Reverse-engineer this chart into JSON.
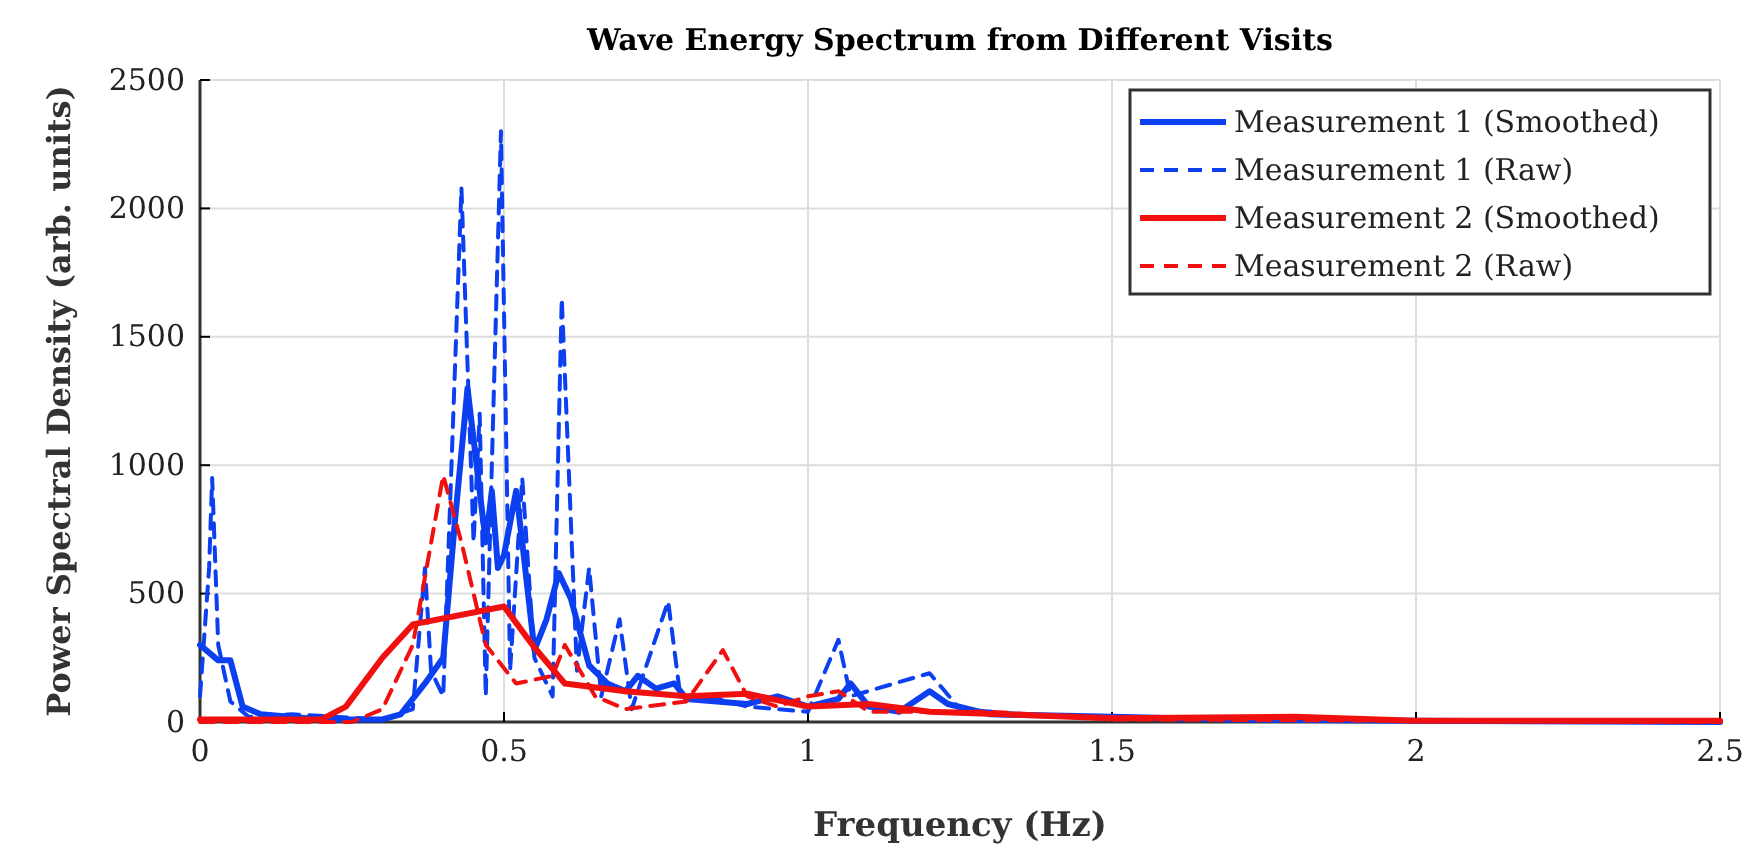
{
  "chart_data": {
    "type": "line",
    "title": "Wave Energy Spectrum from Different Visits",
    "xlabel": "Frequency (Hz)",
    "ylabel": "Power Spectral Density (arb. units)",
    "xlim": [
      0,
      2.5
    ],
    "xticks": [
      0,
      0.5,
      1,
      1.5,
      2,
      2.5
    ],
    "ylim": [
      0,
      2500
    ],
    "yticks": [
      0,
      500,
      1000,
      1500,
      2000,
      2500
    ],
    "grid": true,
    "legend": "top right",
    "series": [
      {
        "name": "Measurement 1 (Smoothed)",
        "color": "#0b3ff0",
        "line_style": "solid",
        "x": [
          0,
          0.03,
          0.05,
          0.07,
          0.1,
          0.2,
          0.3,
          0.33,
          0.37,
          0.4,
          0.42,
          0.44,
          0.46,
          0.47,
          0.48,
          0.49,
          0.5,
          0.52,
          0.53,
          0.55,
          0.57,
          0.59,
          0.61,
          0.64,
          0.67,
          0.7,
          0.72,
          0.75,
          0.78,
          0.8,
          0.85,
          0.9,
          0.95,
          1,
          1.05,
          1.07,
          1.1,
          1.15,
          1.2,
          1.23,
          1.3,
          1.5,
          1.7,
          2,
          2.5
        ],
        "values": [
          300,
          240,
          240,
          60,
          30,
          10,
          10,
          30,
          150,
          250,
          800,
          1300,
          900,
          700,
          900,
          600,
          650,
          900,
          700,
          280,
          400,
          580,
          480,
          220,
          150,
          120,
          180,
          130,
          150,
          90,
          80,
          70,
          100,
          60,
          90,
          150,
          60,
          40,
          120,
          70,
          30,
          20,
          10,
          5,
          0
        ]
      },
      {
        "name": "Measurement 1 (Raw)",
        "color": "#0b3ff0",
        "line_style": "dashed",
        "x": [
          0,
          0.015,
          0.02,
          0.03,
          0.05,
          0.08,
          0.15,
          0.3,
          0.35,
          0.37,
          0.38,
          0.4,
          0.43,
          0.45,
          0.46,
          0.47,
          0.48,
          0.495,
          0.51,
          0.53,
          0.55,
          0.58,
          0.595,
          0.62,
          0.64,
          0.66,
          0.69,
          0.71,
          0.77,
          0.79,
          0.85,
          0.9,
          1,
          1.05,
          1.07,
          1.2,
          1.25,
          1.4,
          1.6,
          2,
          2.5
        ],
        "values": [
          100,
          600,
          950,
          300,
          80,
          20,
          30,
          10,
          50,
          600,
          200,
          100,
          2080,
          700,
          1200,
          100,
          1000,
          2300,
          200,
          950,
          250,
          100,
          1650,
          200,
          600,
          100,
          400,
          50,
          470,
          100,
          90,
          60,
          40,
          320,
          100,
          190,
          50,
          20,
          10,
          5,
          0
        ]
      },
      {
        "name": "Measurement 2 (Smoothed)",
        "color": "#f01010",
        "line_style": "solid",
        "x": [
          0,
          0.2,
          0.24,
          0.3,
          0.35,
          0.5,
          0.55,
          0.6,
          0.7,
          0.8,
          0.9,
          1,
          1.1,
          1.2,
          1.5,
          1.8,
          2,
          2.5
        ],
        "values": [
          10,
          10,
          60,
          250,
          380,
          450,
          290,
          150,
          120,
          100,
          110,
          60,
          70,
          40,
          15,
          20,
          5,
          5
        ]
      },
      {
        "name": "Measurement 2 (Raw)",
        "color": "#f01010",
        "line_style": "dashed",
        "x": [
          0,
          0.25,
          0.3,
          0.35,
          0.4,
          0.43,
          0.47,
          0.52,
          0.58,
          0.6,
          0.65,
          0.7,
          0.8,
          0.86,
          0.9,
          0.95,
          1,
          1.05,
          1.1,
          1.3,
          1.5,
          2,
          2.5
        ],
        "values": [
          0,
          0,
          50,
          300,
          960,
          700,
          300,
          150,
          180,
          300,
          100,
          50,
          80,
          280,
          100,
          60,
          100,
          120,
          40,
          40,
          10,
          5,
          0
        ]
      }
    ]
  }
}
